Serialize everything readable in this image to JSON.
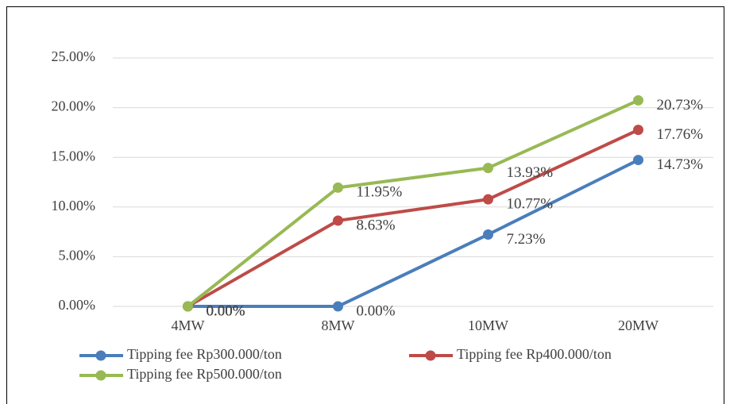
{
  "chart_data": {
    "type": "line",
    "categories": [
      "4MW",
      "8MW",
      "10MW",
      "20MW"
    ],
    "series": [
      {
        "name": "Tipping fee Rp300.000/ton",
        "color": "#4a7ebb",
        "values": [
          0,
          0,
          7.23,
          14.73
        ],
        "value_labels": [
          "0.00%",
          "0.00%",
          "7.23%",
          "14.73%"
        ]
      },
      {
        "name": "Tipping fee Rp400.000/ton",
        "color": "#be4b48",
        "values": [
          0,
          8.63,
          10.77,
          17.76
        ],
        "value_labels": [
          "0.00%",
          "8.63%",
          "10.77%",
          "17.76%"
        ]
      },
      {
        "name": "Tipping fee Rp500.000/ton",
        "color": "#98b954",
        "values": [
          0,
          11.95,
          13.93,
          20.73
        ],
        "value_labels": [
          "0.00%",
          "11.95%",
          "13.93%",
          "20.73%"
        ]
      }
    ],
    "ylim": [
      0,
      25
    ],
    "yticks": [
      {
        "value": 0,
        "label": "0.00%"
      },
      {
        "value": 5,
        "label": "5.00%"
      },
      {
        "value": 10,
        "label": "10.00%"
      },
      {
        "value": 15,
        "label": "15.00%"
      },
      {
        "value": 20,
        "label": "20.00%"
      },
      {
        "value": 25,
        "label": "25.00%"
      }
    ],
    "grid": true,
    "legend": "bottom"
  }
}
